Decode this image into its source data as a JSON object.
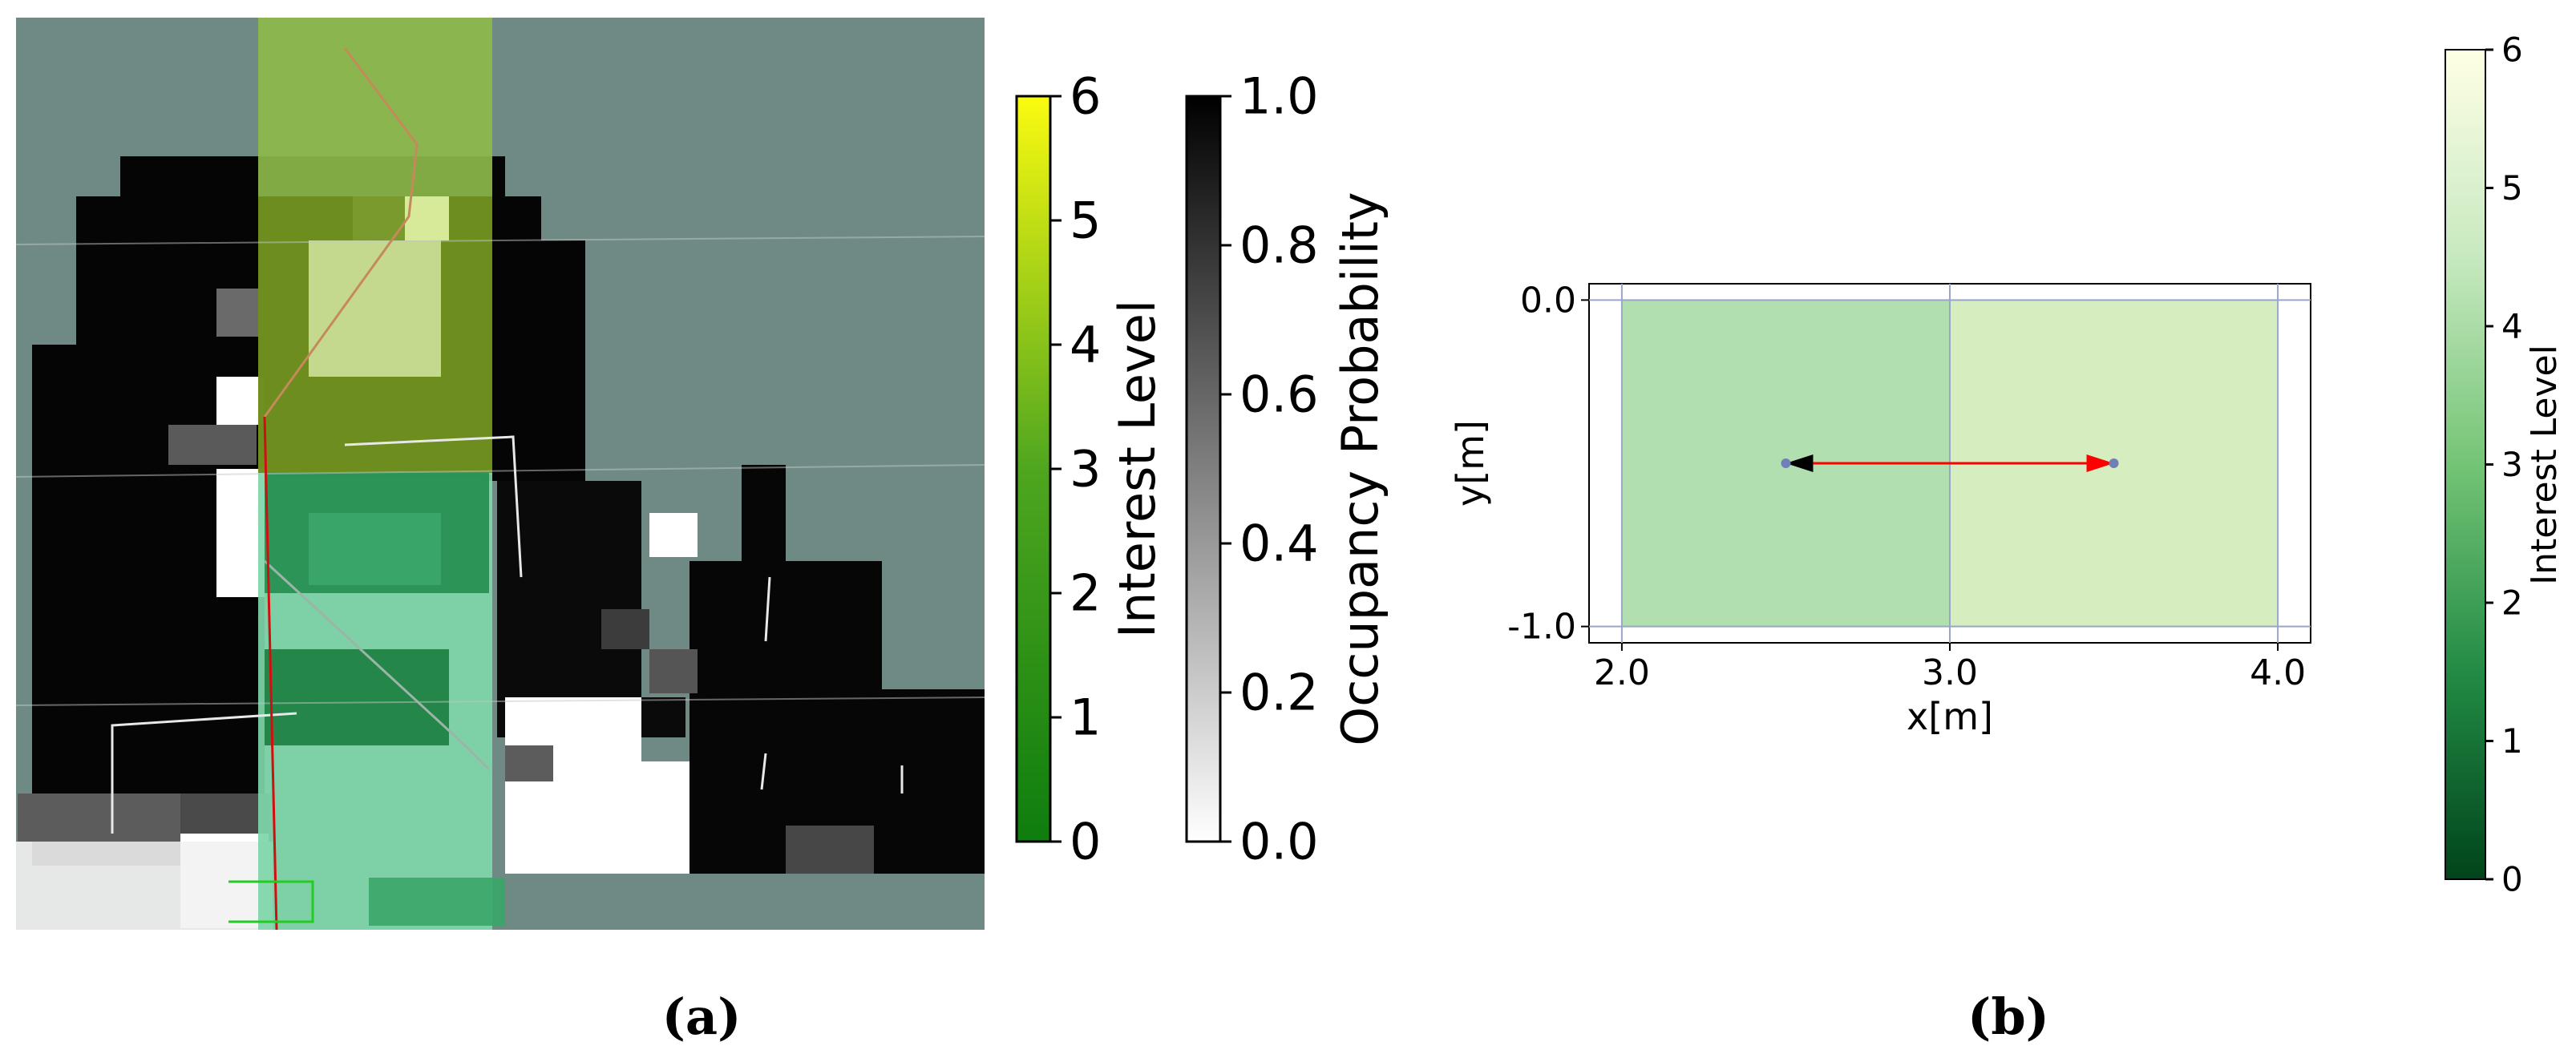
{
  "panel_a": {
    "caption": "(a)",
    "interest_colorbar": {
      "label": "Interest Level",
      "ticks": [
        "0",
        "1",
        "2",
        "3",
        "4",
        "5",
        "6"
      ],
      "range": [
        0,
        6
      ],
      "colors": [
        "#0e7d0e",
        "#4fa61f",
        "#fbfb10"
      ]
    },
    "occupancy_colorbar": {
      "label": "Occupancy Probability",
      "ticks": [
        "0.0",
        "0.2",
        "0.4",
        "0.6",
        "0.8",
        "1.0"
      ],
      "range": [
        0.0,
        1.0
      ],
      "colors": [
        "#ffffff",
        "#000000"
      ]
    }
  },
  "panel_b": {
    "caption": "(b)",
    "colorbar": {
      "label": "Interest Level",
      "ticks": [
        "0",
        "1",
        "2",
        "3",
        "4",
        "5",
        "6"
      ],
      "range": [
        0,
        6
      ],
      "colors": [
        "#00441b",
        "#238b45",
        "#74c476",
        "#c7e9c0",
        "#ffffe5"
      ]
    }
  },
  "chart_data": {
    "type": "heatmap",
    "xlabel": "x[m]",
    "ylabel": "y[m]",
    "xlim": [
      1.9,
      4.1
    ],
    "ylim": [
      -1.05,
      0.05
    ],
    "xticks": [
      2.0,
      3.0,
      4.0
    ],
    "xtick_labels": [
      "2.0",
      "3.0",
      "4.0"
    ],
    "yticks": [
      0.0,
      -1.0
    ],
    "ytick_labels": [
      "0.0",
      "-1.0"
    ],
    "grid": true,
    "colorbar_label": "Interest Level",
    "cells": [
      {
        "x0": 2.0,
        "x1": 3.0,
        "y0": -1.0,
        "y1": 0.0,
        "color": "#b1dfaf"
      },
      {
        "x0": 3.0,
        "x1": 4.0,
        "y0": -1.0,
        "y1": 0.0,
        "color": "#d5edbf"
      }
    ],
    "points": [
      {
        "x": 2.5,
        "y": -0.5
      },
      {
        "x": 3.5,
        "y": -0.5
      }
    ],
    "arrows": [
      {
        "from": [
          3.0,
          -0.5
        ],
        "to": [
          2.5,
          -0.5
        ],
        "head_color": "#000000"
      },
      {
        "from": [
          3.0,
          -0.5
        ],
        "to": [
          3.5,
          -0.5
        ],
        "head_color": "#ff0000"
      }
    ],
    "line_color": "#ff0000",
    "point_color": "#6f7fb8"
  }
}
